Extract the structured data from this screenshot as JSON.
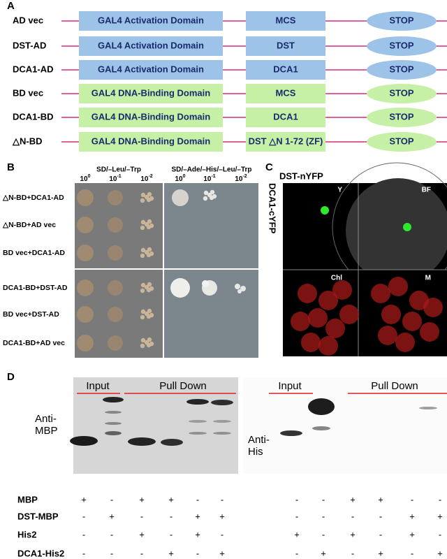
{
  "panels": {
    "A": {
      "label": "A",
      "rows": [
        {
          "name": "AD vec",
          "domain": "GAL4 Activation Domain",
          "insert": "MCS",
          "stop": "STOP",
          "color": "#9dc3e8"
        },
        {
          "name": "DST-AD",
          "domain": "GAL4 Activation Domain",
          "insert": "DST",
          "stop": "STOP",
          "color": "#9dc3e8"
        },
        {
          "name": "DCA1-AD",
          "domain": "GAL4 Activation Domain",
          "insert": "DCA1",
          "stop": "STOP",
          "color": "#9dc3e8"
        },
        {
          "name": "BD vec",
          "domain": "GAL4 DNA-Binding Domain",
          "insert": "MCS",
          "stop": "STOP",
          "color": "#c6f0a6"
        },
        {
          "name": "DCA1-BD",
          "domain": "GAL4 DNA-Binding Domain",
          "insert": "DCA1",
          "stop": "STOP",
          "color": "#c6f0a6"
        },
        {
          "name": "△N-BD",
          "domain": "GAL4 DNA-Binding Domain",
          "insert": "DST △N 1-72 (ZF)",
          "stop": "STOP",
          "color": "#c6f0a6"
        }
      ]
    },
    "B": {
      "label": "B",
      "media": [
        "SD/–Leu/–Trp",
        "SD/–Ade/–His/–Leu/–Trp"
      ],
      "dilutions": [
        {
          "base": "10",
          "exp": "0"
        },
        {
          "base": "10",
          "exp": "-1"
        },
        {
          "base": "10",
          "exp": "-2"
        }
      ],
      "rows": [
        "△N-BD+DCA1-AD",
        "△N-BD+AD vec",
        "BD vec+DCA1-AD",
        "DCA1-BD+DST-AD",
        "BD vec+DST-AD",
        "DCA1-BD+AD vec"
      ]
    },
    "C": {
      "label": "C",
      "title": "DST-nYFP",
      "side": "DCA1-cYFP",
      "channels": [
        "Y",
        "BF",
        "Chl",
        "M"
      ]
    },
    "D": {
      "label": "D",
      "blots": [
        {
          "groups": [
            "Input",
            "Pull Down"
          ],
          "antibody": [
            "Anti-",
            "MBP"
          ]
        },
        {
          "groups": [
            "Input",
            "Pull Down"
          ],
          "antibody": [
            "Anti-",
            "His"
          ]
        }
      ],
      "table": [
        {
          "name": "MBP",
          "left": [
            "+",
            "-",
            "+",
            "+",
            "-",
            "-"
          ],
          "right": [
            "-",
            "-",
            "+",
            "+",
            "-",
            "-"
          ]
        },
        {
          "name": "DST-MBP",
          "left": [
            "-",
            "+",
            "-",
            "-",
            "+",
            "+"
          ],
          "right": [
            "-",
            "-",
            "-",
            "-",
            "+",
            "+"
          ]
        },
        {
          "name": "His2",
          "left": [
            "-",
            "-",
            "+",
            "-",
            "+",
            "-"
          ],
          "right": [
            "+",
            "-",
            "+",
            "-",
            "+",
            "-"
          ]
        },
        {
          "name": "DCA1-His2",
          "left": [
            "-",
            "-",
            "-",
            "+",
            "-",
            "+"
          ],
          "right": [
            "-",
            "+",
            "-",
            "+",
            "-",
            "+"
          ]
        }
      ]
    }
  }
}
